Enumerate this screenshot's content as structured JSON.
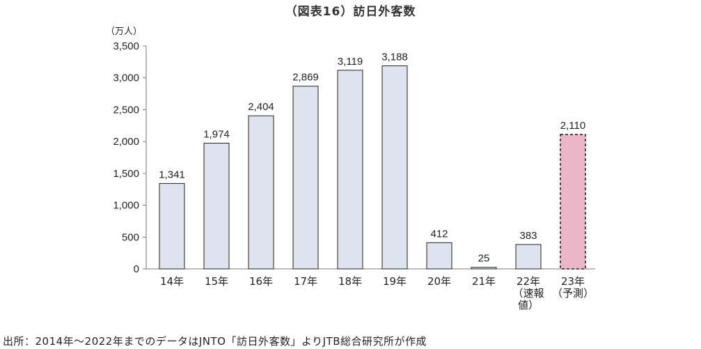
{
  "title": "（図表16）訪日外客数",
  "source": "出所：2014年〜2022年までのデータはJNTO「訪日外客数」よりJTB総合研究所が作成",
  "colors": {
    "bar": "#dde3ef",
    "bar_forecast": "#eab6c8",
    "outline": "#222222"
  },
  "chart_data": {
    "type": "bar",
    "unit_label": "（万人）",
    "categories": [
      [
        "14年"
      ],
      [
        "15年"
      ],
      [
        "16年"
      ],
      [
        "17年"
      ],
      [
        "18年"
      ],
      [
        "19年"
      ],
      [
        "20年"
      ],
      [
        "21年"
      ],
      [
        "22年",
        "（速報",
        "値）"
      ],
      [
        "23年",
        "（予測）"
      ]
    ],
    "values": [
      1341,
      1974,
      2404,
      2869,
      3119,
      3188,
      412,
      25,
      383,
      2110
    ],
    "value_labels": [
      "1,341",
      "1,974",
      "2,404",
      "2,869",
      "3,119",
      "3,188",
      "412",
      "25",
      "383",
      "2,110"
    ],
    "forecast_index": 9,
    "ylim": [
      0,
      3500
    ],
    "yticks": [
      0,
      500,
      1000,
      1500,
      2000,
      2500,
      3000,
      3500
    ],
    "ytick_labels": [
      "0",
      "500",
      "1,000",
      "1,500",
      "2,000",
      "2,500",
      "3,000",
      "3,500"
    ],
    "grid": false
  }
}
